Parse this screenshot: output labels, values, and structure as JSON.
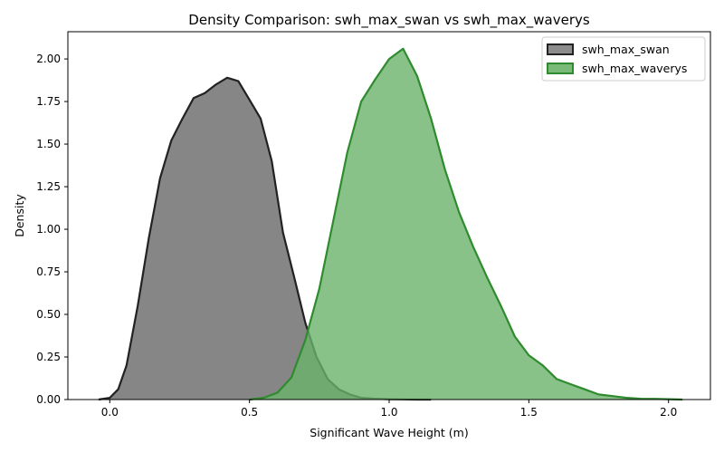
{
  "chart_data": {
    "type": "area",
    "title": "Density Comparison: swh_max_swan vs swh_max_waverys",
    "xlabel": "Significant Wave Height (m)",
    "ylabel": "Density",
    "xlim": [
      -0.15,
      2.15
    ],
    "ylim": [
      0,
      2.16
    ],
    "x_ticks": [
      0.0,
      0.5,
      1.0,
      1.5,
      2.0
    ],
    "x_tick_labels": [
      "0.0",
      "0.5",
      "1.0",
      "1.5",
      "2.0"
    ],
    "y_ticks": [
      0.0,
      0.25,
      0.5,
      0.75,
      1.0,
      1.25,
      1.5,
      1.75,
      2.0
    ],
    "y_tick_labels": [
      "0.00",
      "0.25",
      "0.50",
      "0.75",
      "1.00",
      "1.25",
      "1.50",
      "1.75",
      "2.00"
    ],
    "grid": false,
    "legend_position": "top-right",
    "series": [
      {
        "name": "swh_max_swan",
        "fill_color": "#7f7f7f",
        "line_color": "#222222",
        "x": [
          -0.04,
          0.0,
          0.03,
          0.06,
          0.1,
          0.14,
          0.18,
          0.22,
          0.26,
          0.3,
          0.34,
          0.38,
          0.42,
          0.46,
          0.5,
          0.54,
          0.58,
          0.62,
          0.66,
          0.7,
          0.74,
          0.78,
          0.82,
          0.86,
          0.9,
          0.95,
          1.0,
          1.05,
          1.1,
          1.15
        ],
        "y": [
          0.0,
          0.01,
          0.06,
          0.2,
          0.55,
          0.95,
          1.3,
          1.52,
          1.65,
          1.77,
          1.8,
          1.85,
          1.89,
          1.87,
          1.76,
          1.65,
          1.4,
          0.98,
          0.72,
          0.45,
          0.25,
          0.12,
          0.06,
          0.03,
          0.01,
          0.005,
          0.002,
          0.001,
          0.0,
          0.0
        ]
      },
      {
        "name": "swh_max_waverys",
        "fill_color": "#6ab36a",
        "line_color": "#2e8b2e",
        "x": [
          0.5,
          0.55,
          0.6,
          0.65,
          0.7,
          0.75,
          0.8,
          0.85,
          0.9,
          0.95,
          1.0,
          1.05,
          1.1,
          1.15,
          1.2,
          1.25,
          1.3,
          1.35,
          1.4,
          1.45,
          1.5,
          1.55,
          1.6,
          1.65,
          1.7,
          1.75,
          1.8,
          1.85,
          1.9,
          1.95,
          2.0,
          2.05
        ],
        "y": [
          0.0,
          0.01,
          0.04,
          0.13,
          0.35,
          0.65,
          1.05,
          1.45,
          1.75,
          1.88,
          2.0,
          2.06,
          1.9,
          1.65,
          1.35,
          1.1,
          0.9,
          0.72,
          0.55,
          0.37,
          0.26,
          0.2,
          0.12,
          0.09,
          0.06,
          0.03,
          0.02,
          0.01,
          0.005,
          0.004,
          0.002,
          0.0
        ]
      }
    ]
  }
}
